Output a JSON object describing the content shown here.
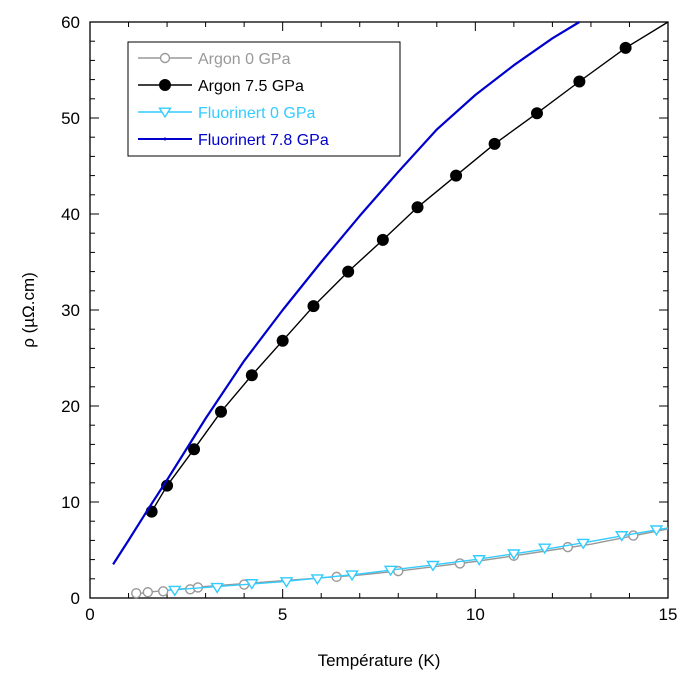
{
  "chart_data": {
    "type": "line",
    "title": "",
    "xlabel": "Température (K)",
    "ylabel": "ρ (µΩ.cm)",
    "xlim": [
      0,
      15
    ],
    "ylim": [
      0,
      60
    ],
    "x_ticks": [
      "0",
      "5",
      "10",
      "15"
    ],
    "y_ticks": [
      "0",
      "10",
      "20",
      "30",
      "40",
      "50",
      "60"
    ],
    "grid": false,
    "legend_position": "top-left",
    "series": [
      {
        "name": "Argon 0 GPa",
        "color": "#999999",
        "marker": "open-circle",
        "x": [
          1.2,
          1.5,
          2.0,
          2.5,
          3.0,
          4.0,
          5.0,
          6.0,
          7.0,
          8.0,
          9.0,
          10.0,
          11.0,
          12.0,
          13.0,
          14.0,
          15.0
        ],
        "y": [
          0.4,
          0.6,
          0.8,
          1.0,
          1.2,
          1.5,
          1.8,
          2.1,
          2.4,
          2.8,
          3.3,
          3.8,
          4.4,
          5.0,
          5.6,
          6.4,
          7.2
        ],
        "marker_x": [
          1.2,
          1.5,
          1.9,
          2.6,
          2.8,
          4.0,
          6.4,
          8.0,
          9.6,
          11.0,
          12.4,
          14.1
        ],
        "marker_y": [
          0.5,
          0.6,
          0.7,
          0.9,
          1.1,
          1.4,
          2.2,
          2.8,
          3.6,
          4.4,
          5.3,
          6.5
        ]
      },
      {
        "name": "Argon 7.5 GPa",
        "color": "#000000",
        "marker": "filled-circle",
        "x": [
          1.6,
          2.0,
          2.7,
          3.4,
          4.2,
          5.0,
          5.8,
          6.7,
          7.6,
          8.5,
          9.5,
          10.5,
          11.6,
          12.7,
          13.9,
          15.0
        ],
        "y": [
          9.0,
          11.7,
          15.5,
          19.4,
          23.2,
          26.8,
          30.4,
          34.0,
          37.3,
          40.7,
          44.0,
          47.3,
          50.5,
          53.8,
          57.3,
          60.0
        ],
        "marker_x": [
          1.6,
          2.0,
          2.7,
          3.4,
          4.2,
          5.0,
          5.8,
          6.7,
          7.6,
          8.5,
          9.5,
          10.5,
          11.6,
          12.7,
          13.9
        ],
        "marker_y": [
          9.0,
          11.7,
          15.5,
          19.4,
          23.2,
          26.8,
          30.4,
          34.0,
          37.3,
          40.7,
          44.0,
          47.3,
          50.5,
          53.8,
          57.3
        ]
      },
      {
        "name": "Fluorinert 0 GPa",
        "color": "#33CCFF",
        "marker": "open-triangle-down",
        "x": [
          2.0,
          3.0,
          4.0,
          5.0,
          6.0,
          7.0,
          8.0,
          9.0,
          10.0,
          11.0,
          12.0,
          13.0,
          14.0,
          15.0
        ],
        "y": [
          0.8,
          1.1,
          1.4,
          1.7,
          2.1,
          2.5,
          3.0,
          3.5,
          4.0,
          4.6,
          5.2,
          5.9,
          6.6,
          7.3
        ],
        "marker_x": [
          2.2,
          3.3,
          4.2,
          5.1,
          5.9,
          6.8,
          7.8,
          8.9,
          10.1,
          11.0,
          11.8,
          12.8,
          13.8,
          14.7
        ],
        "marker_y": [
          0.8,
          1.1,
          1.5,
          1.7,
          2.0,
          2.4,
          2.9,
          3.4,
          4.0,
          4.6,
          5.2,
          5.7,
          6.5,
          7.1
        ]
      },
      {
        "name": "Fluorinert 7.8 GPa",
        "color": "#0000CC",
        "marker": "small-dot",
        "x": [
          0.6,
          1.0,
          1.5,
          2.0,
          3.0,
          4.0,
          5.0,
          6.0,
          7.0,
          8.0,
          9.0,
          10.0,
          11.0,
          12.0,
          12.7
        ],
        "y": [
          3.5,
          6.0,
          9.2,
          12.3,
          18.7,
          24.7,
          30.0,
          35.0,
          39.8,
          44.4,
          48.8,
          52.4,
          55.5,
          58.3,
          60.0
        ],
        "marker_x": [],
        "marker_y": []
      }
    ]
  }
}
